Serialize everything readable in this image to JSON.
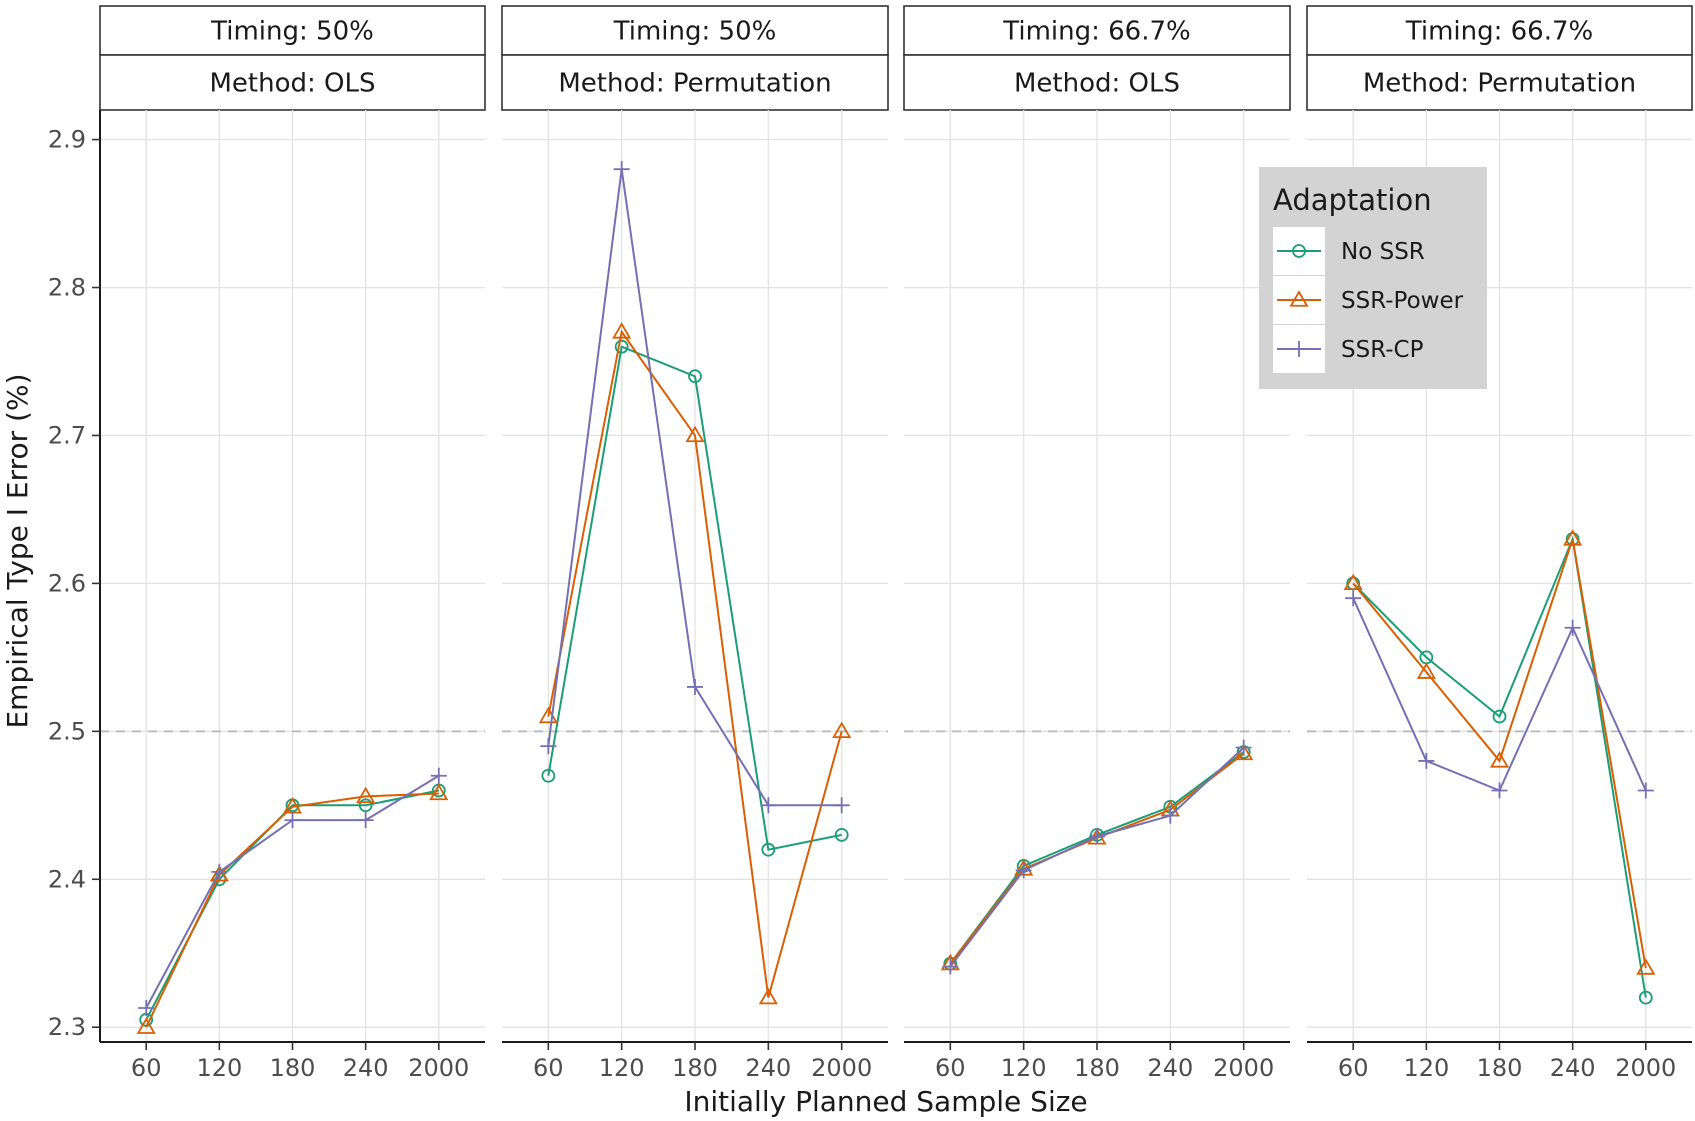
{
  "chart_data": {
    "type": "line",
    "xlabel": "Initially Planned Sample Size",
    "ylabel": "Empirical Type I Error (%)",
    "ylim": [
      2.29,
      2.92
    ],
    "yticks": [
      2.3,
      2.4,
      2.5,
      2.6,
      2.7,
      2.8,
      2.9
    ],
    "ytick_labels": [
      "2.3",
      "2.4",
      "2.5",
      "2.6",
      "2.7",
      "2.8",
      "2.9"
    ],
    "categories": [
      "60",
      "120",
      "180",
      "240",
      "2000"
    ],
    "reference_line": 2.5,
    "grid": true,
    "legend": {
      "title": "Adaptation",
      "position": "top-right",
      "entries": [
        "No SSR",
        "SSR-Power",
        "SSR-CP"
      ]
    },
    "series_styles": [
      {
        "name": "No SSR",
        "color": "#1b9e77",
        "marker": "circle"
      },
      {
        "name": "SSR-Power",
        "color": "#d95f02",
        "marker": "triangle"
      },
      {
        "name": "SSR-CP",
        "color": "#7570b3",
        "marker": "plus"
      }
    ],
    "panels": [
      {
        "strip_top": "Timing: 50%",
        "strip_bottom": "Method: OLS",
        "series": [
          {
            "name": "No SSR",
            "values": [
              2.305,
              2.4,
              2.45,
              2.45,
              2.46
            ]
          },
          {
            "name": "SSR-Power",
            "values": [
              2.3,
              2.403,
              2.449,
              2.456,
              2.458
            ]
          },
          {
            "name": "SSR-CP",
            "values": [
              2.313,
              2.405,
              2.44,
              2.44,
              2.47
            ]
          }
        ]
      },
      {
        "strip_top": "Timing: 50%",
        "strip_bottom": "Method: Permutation",
        "series": [
          {
            "name": "No SSR",
            "values": [
              2.47,
              2.76,
              2.74,
              2.42,
              2.43
            ]
          },
          {
            "name": "SSR-Power",
            "values": [
              2.51,
              2.77,
              2.7,
              2.32,
              2.5
            ]
          },
          {
            "name": "SSR-CP",
            "values": [
              2.49,
              2.88,
              2.53,
              2.45,
              2.45
            ]
          }
        ]
      },
      {
        "strip_top": "Timing: 66.7%",
        "strip_bottom": "Method: OLS",
        "series": [
          {
            "name": "No SSR",
            "values": [
              2.343,
              2.409,
              2.43,
              2.449,
              2.486
            ]
          },
          {
            "name": "SSR-Power",
            "values": [
              2.343,
              2.407,
              2.428,
              2.447,
              2.485
            ]
          },
          {
            "name": "SSR-CP",
            "values": [
              2.341,
              2.406,
              2.429,
              2.443,
              2.489
            ]
          }
        ]
      },
      {
        "strip_top": "Timing: 66.7%",
        "strip_bottom": "Method: Permutation",
        "series": [
          {
            "name": "No SSR",
            "values": [
              2.6,
              2.55,
              2.51,
              2.63,
              2.32
            ]
          },
          {
            "name": "SSR-Power",
            "values": [
              2.6,
              2.54,
              2.48,
              2.63,
              2.34
            ]
          },
          {
            "name": "SSR-CP",
            "values": [
              2.59,
              2.48,
              2.46,
              2.57,
              2.46
            ]
          }
        ]
      }
    ]
  }
}
